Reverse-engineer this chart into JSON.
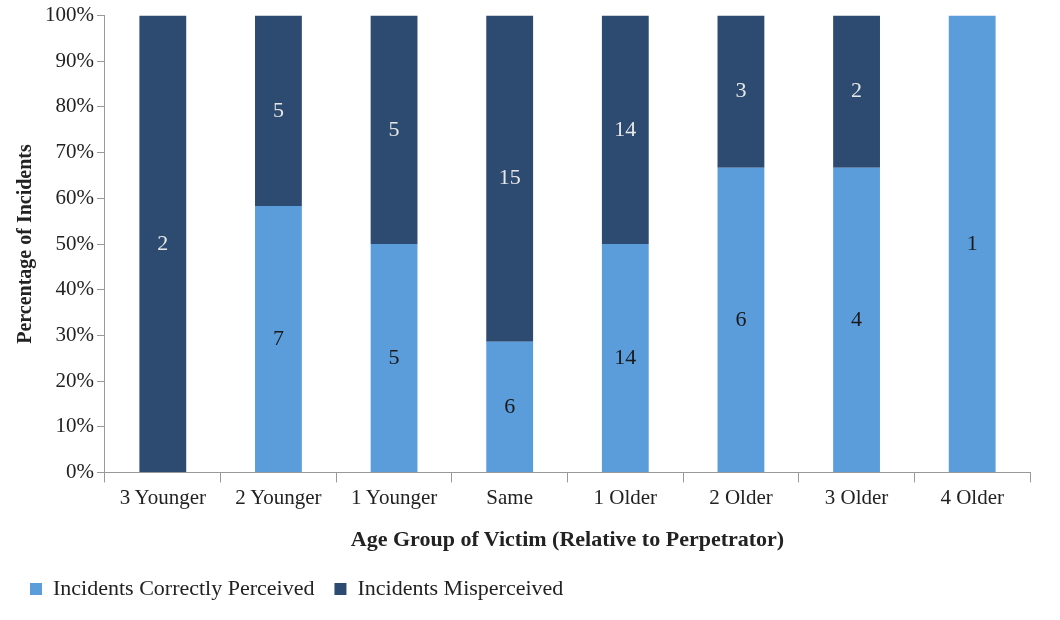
{
  "chart_data": {
    "type": "bar",
    "stacked": true,
    "xlabel": "Age Group of Victim (Relative to Perpetrator)",
    "ylabel": "Percentage of Incidents",
    "categories": [
      "3 Younger",
      "2 Younger",
      "1 Younger",
      "Same",
      "1 Older",
      "2 Older",
      "3 Older",
      "4 Older"
    ],
    "series": [
      {
        "name": "Incidents Correctly Perceived",
        "color": "#5b9ddb",
        "values": [
          0,
          58.3,
          50,
          28.6,
          50,
          66.7,
          66.7,
          100
        ]
      },
      {
        "name": "Incidents Misperceived",
        "color": "#2d4a70",
        "values": [
          100,
          41.7,
          50,
          71.4,
          50,
          33.3,
          33.3,
          0
        ]
      }
    ],
    "annotations": [
      "7",
      "5",
      "6",
      "14",
      "6",
      "4",
      "1",
      "2",
      "5",
      "5",
      "15",
      "14",
      "3",
      "2"
    ],
    "ylim": [
      0,
      100
    ],
    "yticks": [
      {
        "value": 0,
        "label": "0%"
      },
      {
        "value": 10,
        "label": "10%"
      },
      {
        "value": 20,
        "label": "20%"
      },
      {
        "value": 30,
        "label": "30%"
      },
      {
        "value": 40,
        "label": "40%"
      },
      {
        "value": 50,
        "label": "50%"
      },
      {
        "value": 60,
        "label": "60%"
      },
      {
        "value": 70,
        "label": "70%"
      },
      {
        "value": 80,
        "label": "80%"
      },
      {
        "value": 90,
        "label": "90%"
      },
      {
        "value": 100,
        "label": "100%"
      }
    ],
    "grid": false,
    "legend": "bottom left"
  }
}
